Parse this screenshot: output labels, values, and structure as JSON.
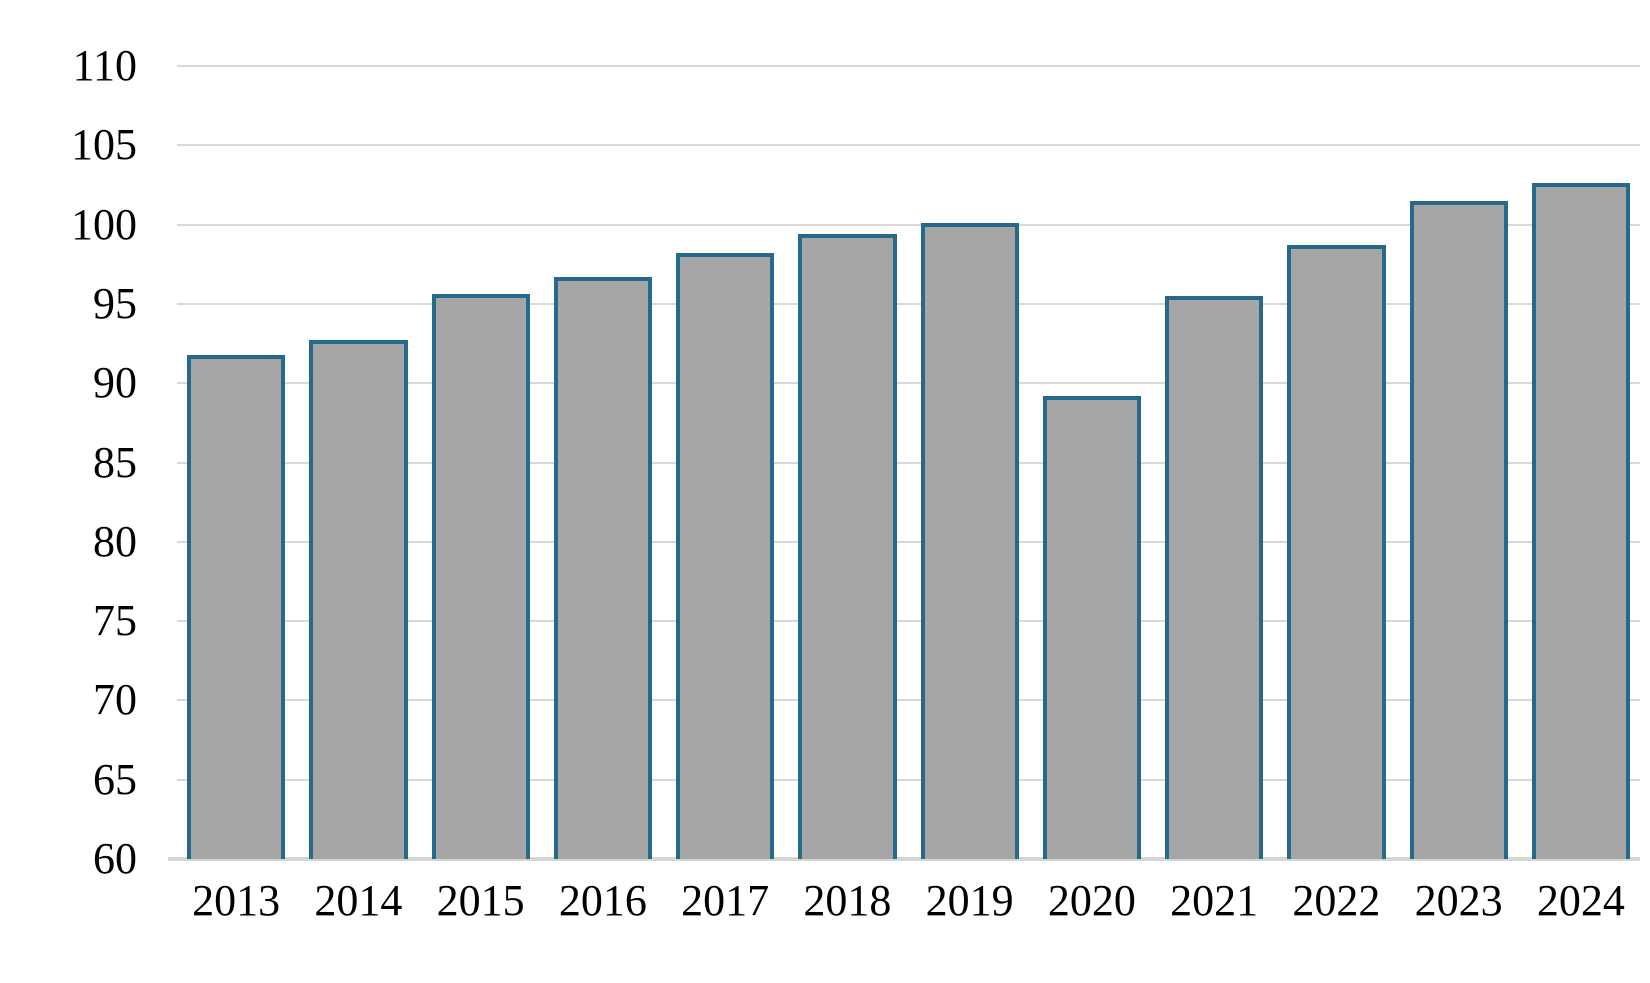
{
  "chart_data": {
    "type": "bar",
    "title": "",
    "xlabel": "",
    "ylabel": "",
    "categories": [
      "2013",
      "2014",
      "2015",
      "2016",
      "2017",
      "2018",
      "2019",
      "2020",
      "2021",
      "2022",
      "2023",
      "2024"
    ],
    "values": [
      91.8,
      92.7,
      95.6,
      96.7,
      98.2,
      99.4,
      100.1,
      89.2,
      95.5,
      98.7,
      101.5,
      102.6
    ],
    "ylim": [
      60,
      110
    ],
    "y_ticks": [
      60,
      65,
      70,
      75,
      80,
      85,
      90,
      95,
      100,
      105,
      110
    ],
    "grid": "horizontal",
    "legend": "none",
    "colors": {
      "bar_fill": "#A6A6A6",
      "bar_border": "#26698A",
      "gridline": "#D9D9D9",
      "axis_line": "#D6D4D4",
      "text": "#000000",
      "background": "#FFFFFF"
    }
  }
}
